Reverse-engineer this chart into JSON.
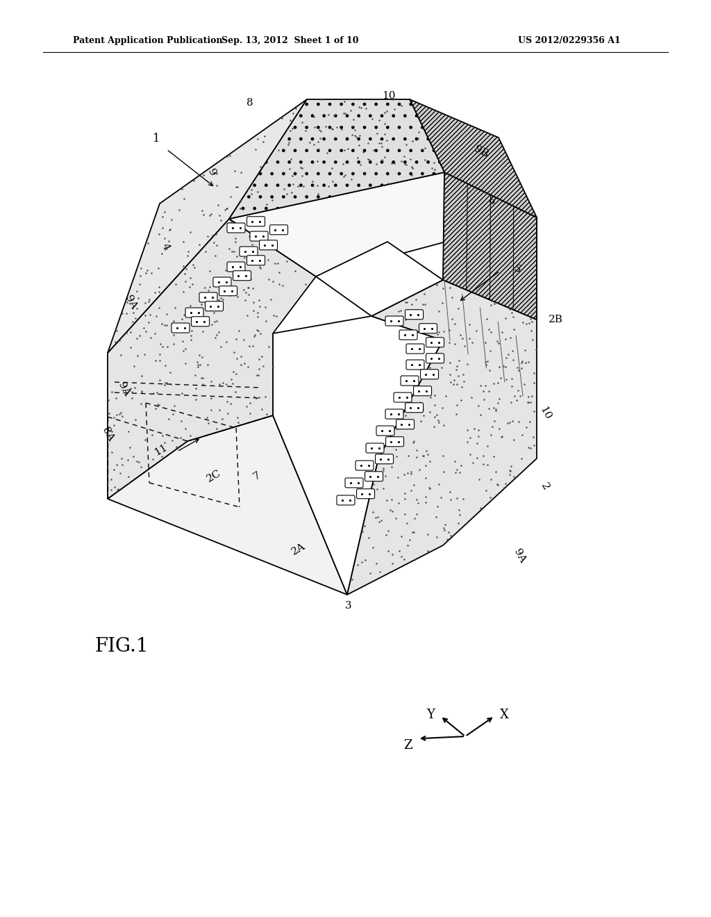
{
  "title_left": "Patent Application Publication",
  "title_center": "Sep. 13, 2012  Sheet 1 of 10",
  "title_right": "US 2012/0229356 A1",
  "fig_label": "FIG.1",
  "bg_color": "#ffffff",
  "line_color": "#000000",
  "dot_color": "#555555",
  "hatch_color": "#888888",
  "face_dot_fill": "#e8e8e8",
  "face_stripe_fill": "#d0d0d0",
  "face_top_fill": "#ececec"
}
